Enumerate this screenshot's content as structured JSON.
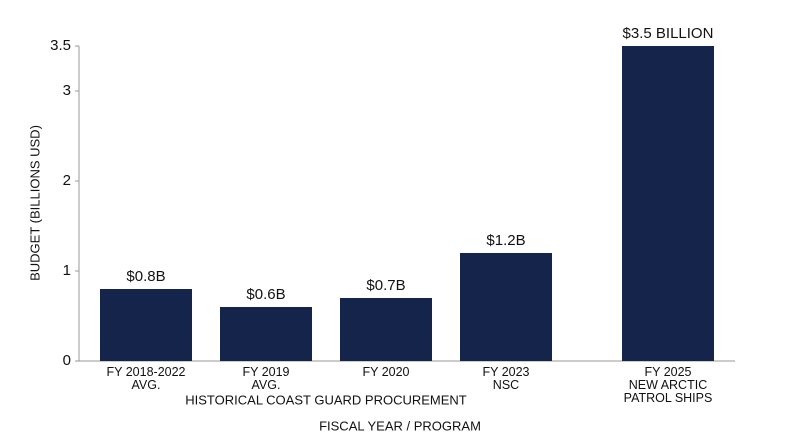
{
  "chart_data": {
    "type": "bar",
    "x_label": "FISCAL YEAR / PROGRAM",
    "y_label": "BUDGET (BILLIONS USD)",
    "annotation": "HISTORICAL COAST GUARD PROCUREMENT",
    "categories": [
      "FY 2018-2022\nAVG.",
      "FY 2019\nAVG.",
      "FY 2020",
      "FY 2023\nNSC",
      "FY 2025\nNEW ARCTIC\nPATROL SHIPS"
    ],
    "values": [
      0.8,
      0.6,
      0.7,
      1.2,
      3.5
    ],
    "value_labels": [
      "$0.8B",
      "$0.6B",
      "$0.7B",
      "$1.2B",
      "$3.5 BILLION"
    ],
    "color": "#14244a",
    "ylim": [
      0,
      3.5
    ],
    "yticks": [
      0,
      1,
      2,
      3,
      3.5
    ]
  }
}
